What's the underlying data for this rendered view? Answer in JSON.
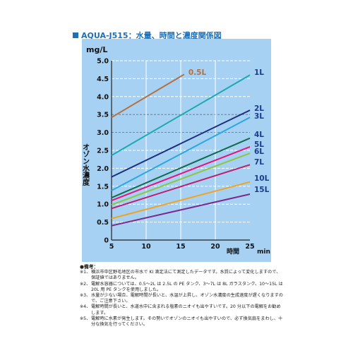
{
  "chart_data": {
    "type": "line",
    "title": "AQUA-J515：水量、時間と濃度関係図",
    "ylabel": "オゾン水濃度",
    "yunit": "mg/L",
    "xlabel": "時間",
    "xunit": "min",
    "xlim": [
      5,
      25
    ],
    "ylim": [
      0,
      5
    ],
    "xticks": [
      "5",
      "10",
      "15",
      "20",
      "25"
    ],
    "yticks": [
      "0",
      "0.5",
      "1.0",
      "1.5",
      "2.0",
      "2.5",
      "3.0",
      "3.5",
      "4.0",
      "4.5",
      "5.0"
    ],
    "series": [
      {
        "name": "0.5L",
        "color": "#b5703e",
        "x": [
          5,
          15.5
        ],
        "y": [
          3.42,
          4.62
        ]
      },
      {
        "name": "1L",
        "color": "#1aaab0",
        "x": [
          5,
          25
        ],
        "y": [
          2.36,
          4.6
        ]
      },
      {
        "name": "2L",
        "color": "#1d2e7c",
        "x": [
          5,
          25
        ],
        "y": [
          1.76,
          3.62
        ]
      },
      {
        "name": "3L",
        "color": "#29a8e0",
        "x": [
          5,
          25
        ],
        "y": [
          1.38,
          3.42
        ]
      },
      {
        "name": "4L",
        "color": "#0e6d4e",
        "x": [
          5,
          25
        ],
        "y": [
          1.18,
          2.84
        ]
      },
      {
        "name": "5L",
        "color": "#e5147d",
        "x": [
          5,
          25
        ],
        "y": [
          1.1,
          2.6
        ]
      },
      {
        "name": "6L",
        "color": "#8cc63f",
        "x": [
          5,
          25
        ],
        "y": [
          0.98,
          2.42
        ]
      },
      {
        "name": "7L",
        "color": "#be1e6d",
        "x": [
          5,
          25
        ],
        "y": [
          0.88,
          2.1
        ]
      },
      {
        "name": "10L",
        "color": "#f3a21c",
        "x": [
          5,
          25
        ],
        "y": [
          0.6,
          1.62
        ]
      },
      {
        "name": "15L",
        "color": "#7b2a8c",
        "x": [
          5,
          25
        ],
        "y": [
          0.4,
          1.28
        ]
      }
    ]
  },
  "notes": {
    "header": "●備考：",
    "items": [
      {
        "num": "※1、",
        "text": "横浜市中区野毛地区の市水で KI 滴定法にて測定したデータです。水質によって変化しますので、保証値ではありません。"
      },
      {
        "num": "※2、",
        "text": "電解水容器については、0.5～2L は 2.5L の PE タンク、3～7L は 8L ガラスタンク、10～15L は 20L 用 PE タンクを使用しました。"
      },
      {
        "num": "※3、",
        "text": "水量が少ない場合、電解時間が長いと、水温が上昇し、オゾン水濃度の生成速度が遅くなりますので、ご注意下さい。"
      },
      {
        "num": "※4、",
        "text": "電解時間が長いと、水道水中に含まれる塩素のニオイも出やすいです。20 分以下の電解をお勧めします。"
      },
      {
        "num": "※5、",
        "text": "電解時に水素が発生します。その勢いでオゾンのニオイも出やすいので、必ず換気扇をまわし、十分な換気を行ってください。"
      }
    ]
  }
}
